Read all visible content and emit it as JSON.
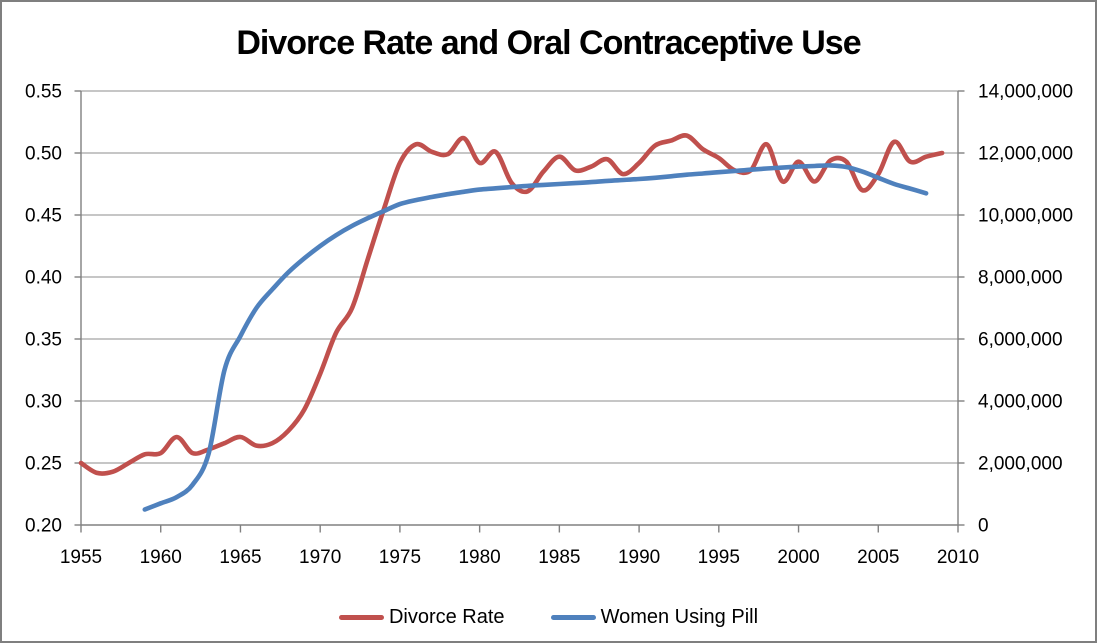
{
  "title": "Divorce Rate and Oral Contraceptive Use",
  "colors": {
    "background": "#FFFFFF",
    "frame_border": "#7F7F7F",
    "grid": "#A3A3A3",
    "axis": "#808080",
    "text": "#000000",
    "divorce_rate": "#C0504D",
    "women_using_pill": "#4F81BD"
  },
  "chart_data": {
    "type": "line",
    "title": "Divorce Rate and Oral Contraceptive Use",
    "grid": true,
    "legend_position": "bottom",
    "x_axis": {
      "min": 1955,
      "max": 2010,
      "tick_interval": 5,
      "ticks": [
        1955,
        1960,
        1965,
        1970,
        1975,
        1980,
        1985,
        1990,
        1995,
        2000,
        2005,
        2010
      ],
      "tick_labels": [
        "1955",
        "1960",
        "1965",
        "1970",
        "1975",
        "1980",
        "1985",
        "1990",
        "1995",
        "2000",
        "2005",
        "2010"
      ]
    },
    "y_axis_left": {
      "series": "Divorce Rate",
      "min": 0.2,
      "max": 0.55,
      "tick_interval": 0.05,
      "ticks": [
        0.2,
        0.25,
        0.3,
        0.35,
        0.4,
        0.45,
        0.5,
        0.55
      ],
      "tick_labels": [
        "0.20",
        "0.25",
        "0.30",
        "0.35",
        "0.40",
        "0.45",
        "0.50",
        "0.55"
      ]
    },
    "y_axis_right": {
      "series": "Women Using Pill",
      "min": 0,
      "max": 14000000,
      "tick_interval": 2000000,
      "ticks": [
        0,
        2000000,
        4000000,
        6000000,
        8000000,
        10000000,
        12000000,
        14000000
      ],
      "tick_labels": [
        "0",
        "2,000,000",
        "4,000,000",
        "6,000,000",
        "8,000,000",
        "10,000,000",
        "12,000,000",
        "14,000,000"
      ]
    },
    "series": [
      {
        "name": "Divorce Rate",
        "axis": "left",
        "color": "#C0504D",
        "smooth": true,
        "x": [
          1955,
          1956,
          1957,
          1958,
          1959,
          1960,
          1961,
          1962,
          1963,
          1964,
          1965,
          1966,
          1967,
          1968,
          1969,
          1970,
          1971,
          1972,
          1973,
          1974,
          1975,
          1976,
          1977,
          1978,
          1979,
          1980,
          1981,
          1982,
          1983,
          1984,
          1985,
          1986,
          1987,
          1988,
          1989,
          1990,
          1991,
          1992,
          1993,
          1994,
          1995,
          1996,
          1997,
          1998,
          1999,
          2000,
          2001,
          2002,
          2003,
          2004,
          2005,
          2006,
          2007,
          2008,
          2009
        ],
        "values": [
          0.25,
          0.242,
          0.243,
          0.25,
          0.257,
          0.258,
          0.271,
          0.258,
          0.261,
          0.266,
          0.271,
          0.264,
          0.266,
          0.276,
          0.293,
          0.322,
          0.355,
          0.375,
          0.415,
          0.455,
          0.492,
          0.507,
          0.501,
          0.499,
          0.512,
          0.492,
          0.501,
          0.476,
          0.469,
          0.485,
          0.497,
          0.486,
          0.489,
          0.495,
          0.483,
          0.492,
          0.506,
          0.51,
          0.514,
          0.503,
          0.496,
          0.486,
          0.486,
          0.507,
          0.477,
          0.493,
          0.477,
          0.494,
          0.493,
          0.47,
          0.483,
          0.509,
          0.493,
          0.497,
          0.5
        ]
      },
      {
        "name": "Women Using Pill",
        "axis": "right",
        "color": "#4F81BD",
        "smooth": true,
        "x": [
          1959,
          1960,
          1961,
          1962,
          1963,
          1964,
          1965,
          1966,
          1967,
          1968,
          1969,
          1970,
          1971,
          1972,
          1973,
          1974,
          1975,
          1976,
          1977,
          1978,
          1979,
          1980,
          1981,
          1982,
          1983,
          1984,
          1985,
          1986,
          1987,
          1988,
          1989,
          1990,
          1991,
          1992,
          1993,
          1994,
          1995,
          1996,
          1997,
          1998,
          1999,
          2000,
          2001,
          2002,
          2003,
          2004,
          2005,
          2006,
          2007,
          2008
        ],
        "values": [
          500000,
          700000,
          900000,
          1300000,
          2300000,
          5000000,
          6100000,
          7000000,
          7600000,
          8150000,
          8600000,
          9000000,
          9350000,
          9650000,
          9900000,
          10130000,
          10350000,
          10480000,
          10580000,
          10670000,
          10750000,
          10820000,
          10860000,
          10900000,
          10940000,
          10970000,
          11000000,
          11030000,
          11060000,
          11100000,
          11130000,
          11160000,
          11200000,
          11250000,
          11300000,
          11340000,
          11380000,
          11420000,
          11460000,
          11500000,
          11530000,
          11560000,
          11580000,
          11600000,
          11550000,
          11400000,
          11200000,
          11000000,
          10850000,
          10700000
        ]
      }
    ]
  }
}
